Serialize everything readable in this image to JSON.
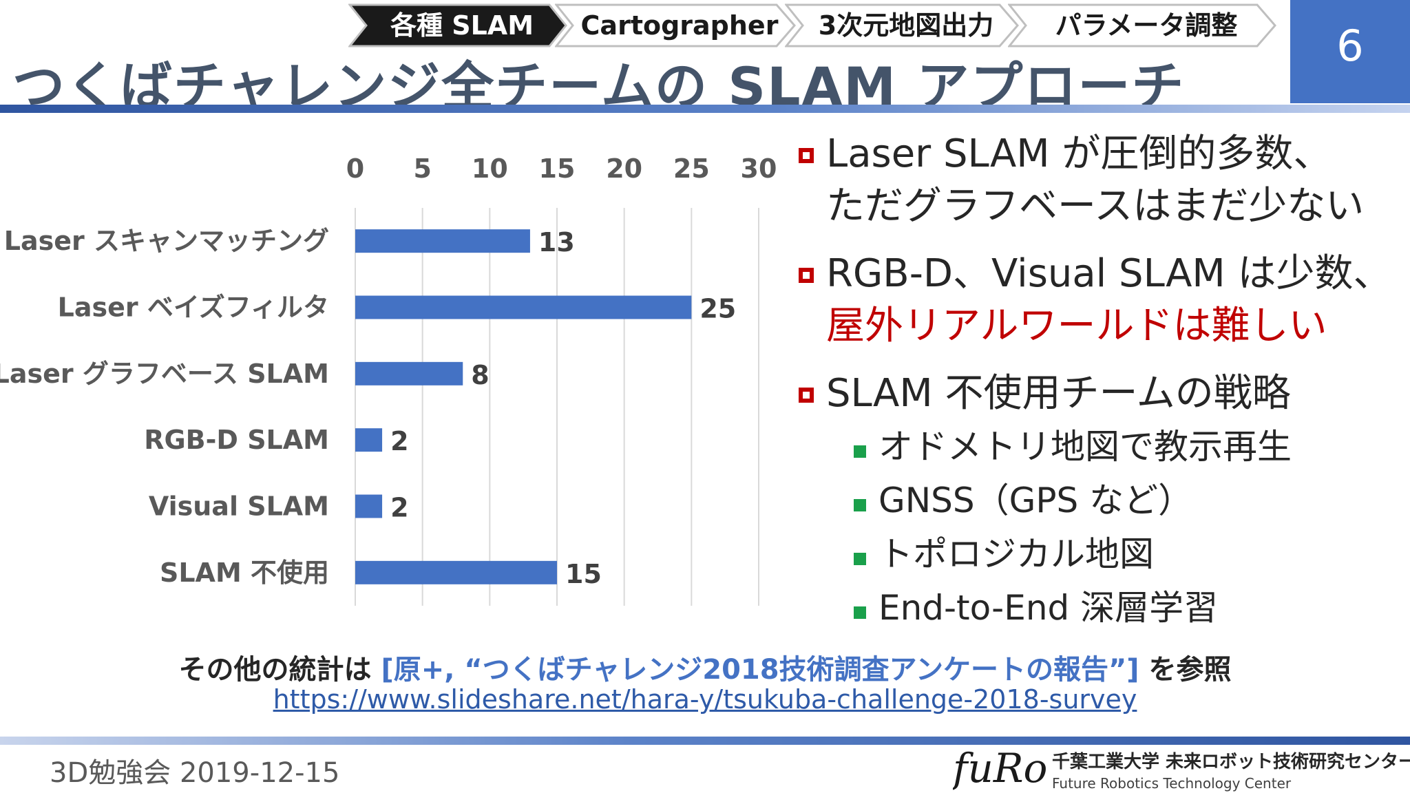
{
  "header": {
    "breadcrumb": [
      {
        "label": "各種 SLAM",
        "active": true
      },
      {
        "label": "Cartographer",
        "active": false
      },
      {
        "label": "3次元地図出力",
        "active": false
      },
      {
        "label": "パラメータ調整",
        "active": false
      }
    ],
    "page_number": "6",
    "title": "つくばチャレンジ全チームの SLAM アプローチ"
  },
  "chart_data": {
    "type": "bar",
    "orientation": "horizontal",
    "categories": [
      "Laser スキャンマッチング",
      "Laser ベイズフィルタ",
      "Laser グラフベース SLAM",
      "RGB-D SLAM",
      "Visual SLAM",
      "SLAM 不使用"
    ],
    "values": [
      13,
      25,
      8,
      2,
      2,
      15
    ],
    "xlim": [
      0,
      30
    ],
    "x_ticks": [
      "0",
      "5",
      "10",
      "15",
      "20",
      "25",
      "30"
    ],
    "axis_position": "top",
    "grid": true,
    "legend": false,
    "title": "",
    "xlabel": "",
    "ylabel": "",
    "bar_color": "#4472c4"
  },
  "bullets": [
    {
      "lines": [
        "Laser SLAM が圧倒的多数、",
        "ただグラフベースはまだ少ない"
      ]
    },
    {
      "lines": [
        "RGB-D、Visual SLAM は少数、"
      ],
      "highlight": "屋外リアルワールドは難しい"
    },
    {
      "lines": [
        "SLAM 不使用チームの戦略"
      ],
      "subitems": [
        "オドメトリ地図で教示再生",
        "GNSS（GPS など）",
        "トポロジカル地図",
        "End-to-End 深層学習"
      ]
    }
  ],
  "footnote": {
    "prefix": "その他の統計は",
    "reference": "[原+, “つくばチャレンジ2018技術調査アンケートの報告”]",
    "suffix": "を参照",
    "url": "https://www.slideshare.net/hara-y/tsukuba-challenge-2018-survey"
  },
  "footer": {
    "event": "3D勉強会  2019-12-15",
    "logo_text": "fuRo",
    "org_ja": "千葉工業大学 未来ロボット技術研究センター",
    "org_en": "Future Robotics Technology Center"
  },
  "colors": {
    "accent": "#4472c4",
    "title": "#44546a",
    "bullet_marker": "#c00000",
    "highlight": "#c00000",
    "sub_marker": "#1aa04b",
    "breadcrumb_active_bg": "#1a1a1a",
    "breadcrumb_inactive_bg": "#ffffff"
  }
}
